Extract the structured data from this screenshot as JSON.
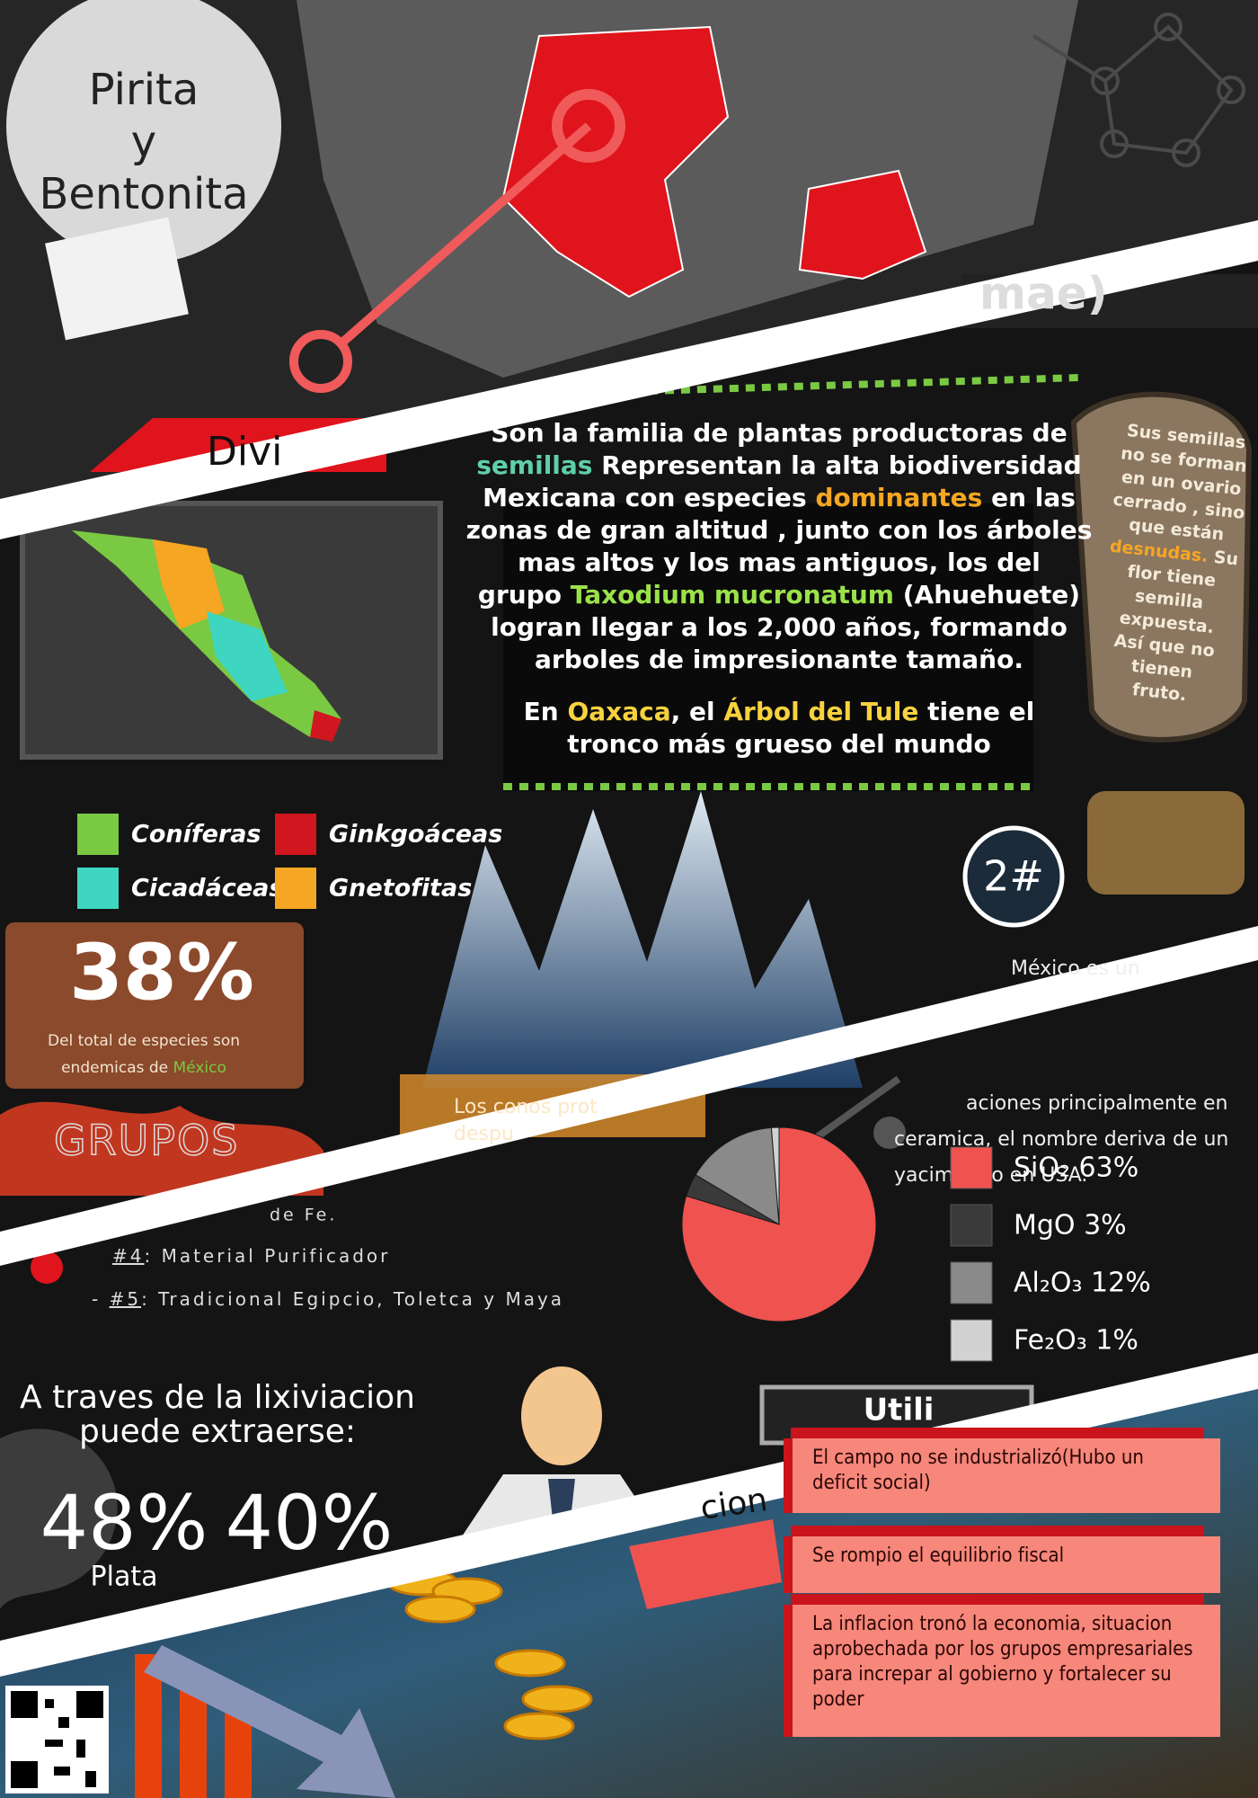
{
  "header": {
    "title_lines": [
      "Pirita",
      "y",
      "Bentonita"
    ],
    "tag": "Divi",
    "corner": "mae)"
  },
  "plants": {
    "lines": [
      [
        {
          "text": "Son la familia de plantas productoras de"
        }
      ],
      [
        {
          "text": "semillas",
          "color": "#5fd0a8"
        },
        {
          "text": " Representan la alta biodiversidad"
        }
      ],
      [
        {
          "text": "Mexicana con especies "
        },
        {
          "text": "dominantes",
          "color": "#f5a623"
        },
        {
          "text": " en las"
        }
      ],
      [
        {
          "text": "zonas de gran altitud , junto con los árboles"
        }
      ],
      [
        {
          "text": "mas altos y los mas antiguos, los del"
        }
      ],
      [
        {
          "text": "grupo "
        },
        {
          "text": "Taxodium mucronatum",
          "color": "#9be24a"
        },
        {
          "text": " (Ahuehuete)"
        }
      ],
      [
        {
          "text": "logran llegar a los 2,000 años, formando"
        }
      ],
      [
        {
          "text": "arboles de impresionante tamaño."
        }
      ],
      [
        {
          "text": "En "
        },
        {
          "text": "Oaxaca",
          "color": "#f7d23e"
        },
        {
          "text": ", el "
        },
        {
          "text": "Árbol del Tule",
          "color": "#f7d23e"
        },
        {
          "text": " tiene el"
        }
      ],
      [
        {
          "text": "tronco más grueso del mundo"
        }
      ]
    ],
    "seed_note": [
      [
        {
          "text": "Sus semillas"
        }
      ],
      [
        {
          "text": "no se forman"
        }
      ],
      [
        {
          "text": "en un ovario"
        }
      ],
      [
        {
          "text": "cerrado , sino"
        }
      ],
      [
        {
          "text": "que están"
        }
      ],
      [
        {
          "text": "desnudas.",
          "color": "#f5a623"
        },
        {
          "text": " Su"
        }
      ],
      [
        {
          "text": "flor tiene"
        }
      ],
      [
        {
          "text": "semilla"
        }
      ],
      [
        {
          "text": "expuesta."
        }
      ],
      [
        {
          "text": "Así que no"
        }
      ],
      [
        {
          "text": "tienen"
        }
      ],
      [
        {
          "text": "fruto."
        }
      ]
    ],
    "legend": [
      {
        "label": "Coníferas",
        "color": "#7ac943"
      },
      {
        "label": "Ginkgoáceas",
        "color": "#d0161e"
      },
      {
        "label": "Cicadáceas",
        "color": "#3ed6c0"
      },
      {
        "label": "Gnetofitas",
        "color": "#f5a623"
      }
    ],
    "stat": {
      "value": "38%",
      "caption_lines": [
        [
          {
            "text": "Del total de especies son"
          }
        ],
        [
          {
            "text": "endemicas de "
          },
          {
            "text": "México",
            "color": "#7ac943"
          }
        ]
      ]
    },
    "groups": "GRUPOS",
    "rank": "2#",
    "cones": [
      "Los conos prot",
      "despu"
    ]
  },
  "bentonita": {
    "lines": [
      "México es un",
      "aciones principalmente en",
      "ceramica, el nombre deriva de un",
      "yacimiento en USA."
    ]
  },
  "uses": {
    "fe": "de Fe.",
    "items": [
      {
        "num": "#4",
        "text": ": Material Purificador"
      },
      {
        "prefix": "- ",
        "num": "#5",
        "text": ": Tradicional Egipcio, Toletca y Maya"
      }
    ]
  },
  "pie": {
    "items": [
      {
        "label": "SiO₂ 63%",
        "value": 63,
        "color": "#ef5350"
      },
      {
        "label": "MgO 3%",
        "value": 3,
        "color": "#3a3a3a"
      },
      {
        "label": "Al₂O₃ 12%",
        "value": 12,
        "color": "#8a8a8a"
      },
      {
        "label": "Fe₂O₃ 1%",
        "value": 1,
        "color": "#d2d2d2"
      }
    ]
  },
  "extraction": {
    "title_lines": [
      "A traves de la lixiviacion",
      "puede extraerse:"
    ],
    "stats": [
      {
        "value": "48%",
        "label": "Plata"
      },
      {
        "value": "40%"
      }
    ]
  },
  "consequences": {
    "heading": "Utili",
    "tag": "cion",
    "items": [
      [
        "El campo no se industrializó(Hubo un",
        "deficit social)"
      ],
      [
        "Se rompio el equilibrio fiscal"
      ],
      [
        "La inflacion tronó la economia, situacion",
        "aprobechada por los grupos empresariales",
        "para increpar al gobierno y fortalecer su",
        "poder"
      ]
    ]
  }
}
